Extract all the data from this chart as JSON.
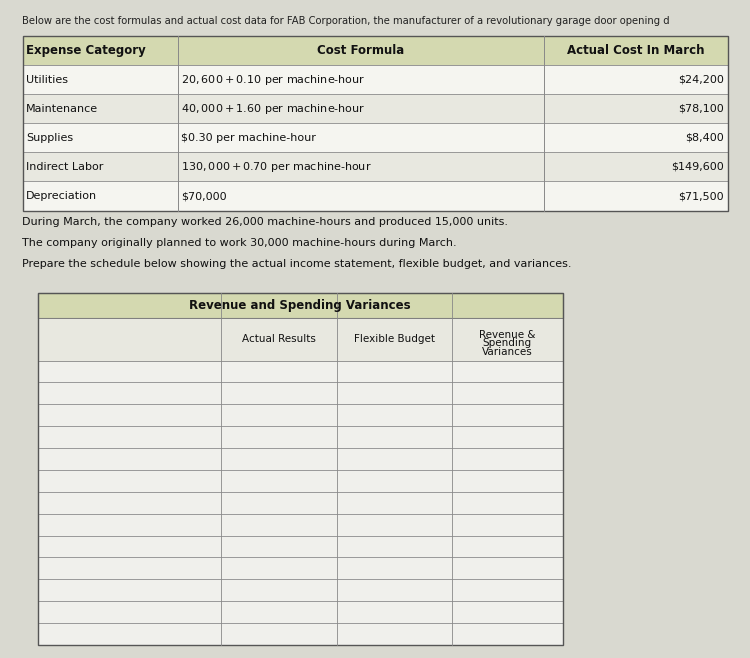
{
  "header_text": "Below are the cost formulas and actual cost data for FAB Corporation, the manufacturer of a revolutionary garage door opening d",
  "top_table": {
    "headers": [
      "Expense Category",
      "Cost Formula",
      "Actual Cost In March"
    ],
    "rows": [
      [
        "Utilities",
        "$20,600 + $0.10 per machine-hour",
        "$24,200"
      ],
      [
        "Maintenance",
        "$40,000 + $1.60 per machine-hour",
        "$78,100"
      ],
      [
        "Supplies",
        "$0.30 per machine-hour",
        "$8,400"
      ],
      [
        "Indirect Labor",
        "$130,000+ $0.70 per machine-hour",
        "$149,600"
      ],
      [
        "Depreciation",
        "$70,000",
        "$71,500"
      ]
    ],
    "header_bg": "#d4d9b0",
    "row_bg_odd": "#f5f5f0",
    "row_bg_even": "#e8e8e0"
  },
  "paragraph_lines": [
    "During March, the company worked 26,000 machine-hours and produced 15,000 units.",
    "The company originally planned to work 30,000 machine-hours during March.",
    "Prepare the schedule below showing the actual income statement, flexible budget, and variances."
  ],
  "bottom_table": {
    "title": "Revenue and Spending Variances",
    "col_headers": [
      "",
      "Actual Results",
      "Flexible Budget",
      "Revenue &\nSpending\nVariances"
    ],
    "num_rows": 13,
    "title_bg": "#d4d9b0",
    "header_bg": "#e8e8e0",
    "row_bg": "#f0f0ec"
  },
  "bg_color": "#d9d9d0",
  "content_bg": "#f5f5f0",
  "font_size_header": 8,
  "font_size_body": 8
}
